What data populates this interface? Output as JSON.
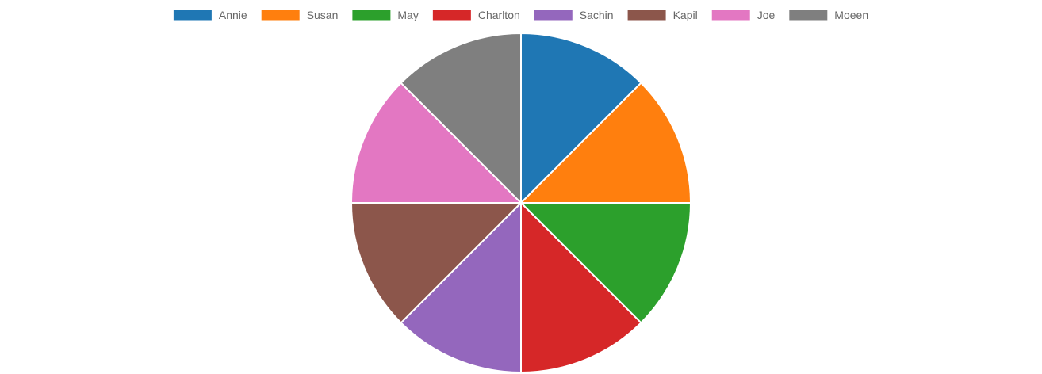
{
  "chart_data": {
    "type": "pie",
    "title": "",
    "labels": [
      "Annie",
      "Susan",
      "May",
      "Charlton",
      "Sachin",
      "Kapil",
      "Joe",
      "Moeen"
    ],
    "values": [
      1,
      1,
      1,
      1,
      1,
      1,
      1,
      1
    ],
    "colors": [
      "#1f77b4",
      "#ff7f0e",
      "#2ca02c",
      "#d62728",
      "#9467bd",
      "#8c564b",
      "#e377c2",
      "#7f7f7f"
    ],
    "legend_position": "top",
    "start_angle_deg": 0,
    "direction": "clockwise",
    "slice_border_color": "#ffffff"
  }
}
